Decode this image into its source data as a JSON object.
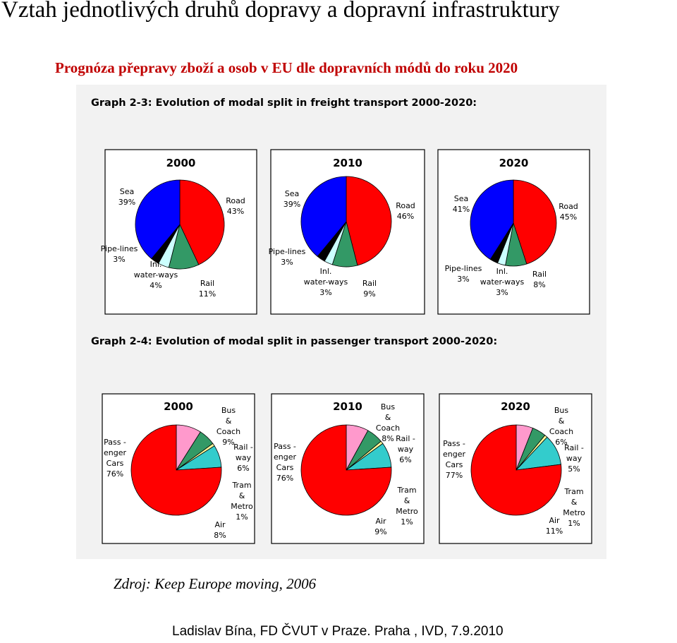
{
  "page": {
    "title": "Vztah jednotlivých druhů dopravy a dopravní infrastruktury",
    "subtitle": "Prognóza přepravy zboží a osob v EU dle dopravních módů do roku 2020",
    "source": "Zdroj: Keep Europe moving, 2006",
    "footer": "Ladislav Bína, FD ČVUT v Praze. Praha , IVD, 7.9.2010"
  },
  "figure": {
    "freight_heading": "Graph 2-3: Evolution of modal split in freight transport 2000-2020:",
    "passenger_heading": "Graph 2-4: Evolution of modal split in passenger transport 2000-2020:"
  },
  "colors": {
    "road": "#ff0000",
    "sea": "#0000ff",
    "rail": "#339966",
    "inland_waterways": "#ccffff",
    "pipelines": "#000000",
    "passenger_cars": "#ff0000",
    "bus_coach": "#ff99cc",
    "railway": "#339966",
    "tram_metro": "#ffff99",
    "air": "#33cccc",
    "frame_bg": "#ffffff",
    "figure_bg": "#f2f2f2"
  },
  "chart_data": [
    {
      "type": "pie",
      "group": "freight",
      "title": "2000",
      "slices": [
        {
          "label": "Road",
          "value": 43,
          "value_label": "43%",
          "color": "road"
        },
        {
          "label": "Rail",
          "value": 11,
          "value_label": "11%",
          "color": "rail"
        },
        {
          "label": "Inl. water-ways",
          "value": 4,
          "value_label": "4%",
          "color": "inland_waterways"
        },
        {
          "label": "Pipe-lines",
          "value": 3,
          "value_label": "3%",
          "color": "pipelines"
        },
        {
          "label": "Sea",
          "value": 39,
          "value_label": "39%",
          "color": "sea"
        }
      ]
    },
    {
      "type": "pie",
      "group": "freight",
      "title": "2010",
      "slices": [
        {
          "label": "Road",
          "value": 46,
          "value_label": "46%",
          "color": "road"
        },
        {
          "label": "Rail",
          "value": 9,
          "value_label": "9%",
          "color": "rail"
        },
        {
          "label": "Inl. water-ways",
          "value": 3,
          "value_label": "3%",
          "color": "inland_waterways"
        },
        {
          "label": "Pipe-lines",
          "value": 3,
          "value_label": "3%",
          "color": "pipelines"
        },
        {
          "label": "Sea",
          "value": 39,
          "value_label": "39%",
          "color": "sea"
        }
      ]
    },
    {
      "type": "pie",
      "group": "freight",
      "title": "2020",
      "slices": [
        {
          "label": "Road",
          "value": 45,
          "value_label": "45%",
          "color": "road"
        },
        {
          "label": "Rail",
          "value": 8,
          "value_label": "8%",
          "color": "rail"
        },
        {
          "label": "Inl. water-ways",
          "value": 3,
          "value_label": "3%",
          "color": "inland_waterways"
        },
        {
          "label": "Pipe-lines",
          "value": 3,
          "value_label": "3%",
          "color": "pipelines"
        },
        {
          "label": "Sea",
          "value": 41,
          "value_label": "41%",
          "color": "sea"
        }
      ]
    },
    {
      "type": "pie",
      "group": "passenger",
      "title": "2000",
      "slices": [
        {
          "label": "Bus & Coach",
          "value": 9,
          "value_label": "9%",
          "color": "bus_coach"
        },
        {
          "label": "Rail - way",
          "value": 6,
          "value_label": "6%",
          "color": "railway"
        },
        {
          "label": "Tram & Metro",
          "value": 1,
          "value_label": "1%",
          "color": "tram_metro"
        },
        {
          "label": "Air",
          "value": 8,
          "value_label": "8%",
          "color": "air"
        },
        {
          "label": "Pass - enger Cars",
          "value": 76,
          "value_label": "76%",
          "color": "passenger_cars"
        }
      ]
    },
    {
      "type": "pie",
      "group": "passenger",
      "title": "2010",
      "slices": [
        {
          "label": "Bus & Coach",
          "value": 8,
          "value_label": "8%",
          "color": "bus_coach"
        },
        {
          "label": "Rail - way",
          "value": 6,
          "value_label": "6%",
          "color": "railway"
        },
        {
          "label": "Tram & Metro",
          "value": 1,
          "value_label": "1%",
          "color": "tram_metro"
        },
        {
          "label": "Air",
          "value": 9,
          "value_label": "9%",
          "color": "air"
        },
        {
          "label": "Pass - enger Cars",
          "value": 76,
          "value_label": "76%",
          "color": "passenger_cars"
        }
      ]
    },
    {
      "type": "pie",
      "group": "passenger",
      "title": "2020",
      "slices": [
        {
          "label": "Bus & Coach",
          "value": 6,
          "value_label": "6%",
          "color": "bus_coach"
        },
        {
          "label": "Rail - way",
          "value": 5,
          "value_label": "5%",
          "color": "railway"
        },
        {
          "label": "Tram & Metro",
          "value": 1,
          "value_label": "1%",
          "color": "tram_metro"
        },
        {
          "label": "Air",
          "value": 11,
          "value_label": "11%",
          "color": "air"
        },
        {
          "label": "Pass - enger Cars",
          "value": 77,
          "value_label": "77%",
          "color": "passenger_cars"
        }
      ]
    }
  ]
}
